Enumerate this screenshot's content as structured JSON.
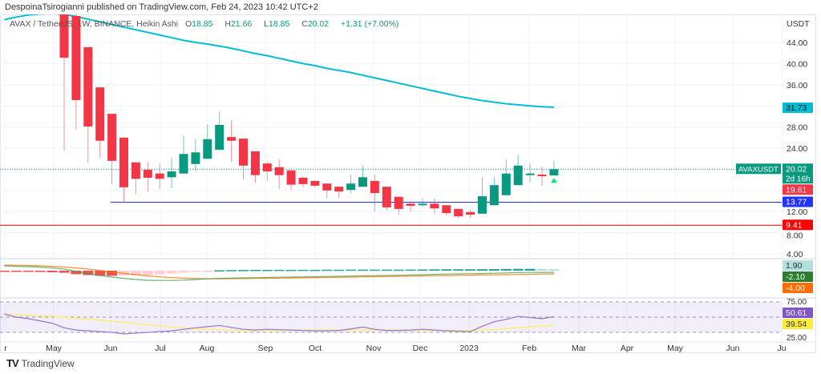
{
  "header": {
    "publisher": "DespoinaTsirogianni published on TradingView.com, Feb 24, 2023 10:42 UTC+2",
    "symbol": "AVAX / TetherUS, 1W, BINANCE, Heikin Ashi",
    "o_label": "O",
    "o": "18.85",
    "h_label": "H",
    "h": "21.66",
    "l_label": "L",
    "l": "18.85",
    "c_label": "C",
    "c": "20.02",
    "change": "+1.31 (+7.00%)"
  },
  "footer": {
    "logo_text": "TradingView"
  },
  "colors": {
    "up": "#089981",
    "down": "#f23645",
    "ma": "#00bcd4",
    "support_blue": "#2133f5",
    "support_red": "#ff0000",
    "rsi": "#9575cd",
    "rsi_ma": "#ffee58",
    "macd": "#43a047",
    "signal": "#ff6d00"
  },
  "chart_data": [
    {
      "type": "candlestick",
      "style": "Heikin Ashi",
      "title": "AVAX / TetherUS, 1W, BINANCE",
      "y_unit": "USDT",
      "ylim": [
        2.5,
        50
      ],
      "y_ticks": [
        "44.00",
        "40.00",
        "36.00",
        "28.00",
        "24.00",
        "12.00",
        "8.00",
        "4.00"
      ],
      "x_ticks": [
        "r",
        "May",
        "Jun",
        "Jul",
        "Aug",
        "Sep",
        "Oct",
        "Nov",
        "Dec",
        "2023",
        "Feb",
        "Mar",
        "Apr",
        "May",
        "Jun",
        "Ju"
      ],
      "grid": true,
      "candles": [
        null,
        null,
        null,
        null,
        null,
        {
          "o": 50,
          "h": 50,
          "l": 23.5,
          "c": 41.1
        },
        {
          "o": 49,
          "h": 52,
          "l": 27.5,
          "c": 33.1
        },
        {
          "o": 43.1,
          "h": 43.1,
          "l": 21.3,
          "c": 28.1
        },
        {
          "o": 35.5,
          "h": 35.5,
          "l": 22.2,
          "c": 25.4
        },
        {
          "o": 30.5,
          "h": 30.5,
          "l": 17.2,
          "c": 21.6
        },
        {
          "o": 26,
          "h": 26,
          "l": 13.7,
          "c": 16.6
        },
        {
          "o": 21.3,
          "h": 21.3,
          "l": 15.4,
          "c": 18.2
        },
        {
          "o": 19.9,
          "h": 21.4,
          "l": 15.8,
          "c": 18.4
        },
        {
          "o": 19.2,
          "h": 21.1,
          "l": 16.3,
          "c": 18.2
        },
        {
          "o": 18.5,
          "h": 22.2,
          "l": 16.4,
          "c": 19.6
        },
        {
          "o": 19.2,
          "h": 26.4,
          "l": 19.2,
          "c": 22.9
        },
        {
          "o": 21,
          "h": 25.8,
          "l": 19.6,
          "c": 23.2
        },
        {
          "o": 22,
          "h": 28.5,
          "l": 22,
          "c": 25.7
        },
        {
          "o": 23.7,
          "h": 31,
          "l": 23.7,
          "c": 28.4
        },
        {
          "o": 26.1,
          "h": 29.3,
          "l": 21.4,
          "c": 25.4
        },
        {
          "o": 25.8,
          "h": 25.8,
          "l": 18.1,
          "c": 20.7
        },
        {
          "o": 23.4,
          "h": 23.4,
          "l": 17.5,
          "c": 18.9
        },
        {
          "o": 21.1,
          "h": 21.4,
          "l": 17.8,
          "c": 19.6
        },
        {
          "o": 20.4,
          "h": 21.9,
          "l": 16.3,
          "c": 18.9
        },
        {
          "o": 19.8,
          "h": 19.8,
          "l": 16.1,
          "c": 17.1
        },
        {
          "o": 18.4,
          "h": 18.6,
          "l": 16.6,
          "c": 17.2
        },
        {
          "o": 17.8,
          "h": 17.8,
          "l": 16.6,
          "c": 16.9
        },
        {
          "o": 17.3,
          "h": 17.3,
          "l": 14.5,
          "c": 16
        },
        {
          "o": 16.7,
          "h": 16.7,
          "l": 14.6,
          "c": 15.8
        },
        {
          "o": 16.1,
          "h": 19,
          "l": 15.5,
          "c": 17.3
        },
        {
          "o": 16.7,
          "h": 20.7,
          "l": 16.7,
          "c": 18.5
        },
        {
          "o": 17.8,
          "h": 19,
          "l": 12,
          "c": 15.5
        },
        {
          "o": 16.7,
          "h": 16.7,
          "l": 12.2,
          "c": 12.8
        },
        {
          "o": 14.8,
          "h": 14.8,
          "l": 11.4,
          "c": 12.5
        },
        {
          "o": 13.5,
          "h": 14,
          "l": 12,
          "c": 13.1
        },
        {
          "o": 13.2,
          "h": 14.5,
          "l": 12.9,
          "c": 13.5
        },
        {
          "o": 13.5,
          "h": 14.5,
          "l": 11.6,
          "c": 12.6
        },
        {
          "o": 13.2,
          "h": 13.2,
          "l": 11.3,
          "c": 11.7
        },
        {
          "o": 12.5,
          "h": 12.5,
          "l": 10.7,
          "c": 11.1
        },
        {
          "o": 11.9,
          "h": 12.3,
          "l": 10.8,
          "c": 11.4
        },
        {
          "o": 11.6,
          "h": 18.5,
          "l": 11.6,
          "c": 14.9
        },
        {
          "o": 13.2,
          "h": 18.5,
          "l": 13.2,
          "c": 17
        },
        {
          "o": 15.1,
          "h": 21.9,
          "l": 15.1,
          "c": 19.2
        },
        {
          "o": 17,
          "h": 22.8,
          "l": 17,
          "c": 20.7
        },
        {
          "o": 18.9,
          "h": 21.1,
          "l": 17.5,
          "c": 19.2
        },
        {
          "o": 19,
          "h": 20.5,
          "l": 16.9,
          "c": 18.7
        },
        {
          "o": 18.85,
          "h": 21.66,
          "l": 18.85,
          "c": 20.02
        }
      ],
      "moving_average": [
        48.3,
        48.8,
        49.2,
        49.4,
        49.5,
        49.3,
        48.9,
        48.4,
        47.9,
        47.4,
        46.9,
        46.4,
        45.9,
        45.4,
        44.9,
        44.4,
        44.0,
        43.7,
        43.3,
        42.9,
        42.4,
        41.9,
        41.5,
        41.0,
        40.5,
        40.0,
        39.6,
        39.1,
        38.7,
        38.3,
        37.8,
        37.3,
        36.8,
        36.3,
        35.8,
        35.3,
        34.8,
        34.3,
        33.8,
        33.4,
        33.0,
        32.7,
        32.4,
        32.2,
        32.0,
        31.85,
        31.73
      ],
      "horizontal_lines": [
        {
          "value": 13.77,
          "label": "13.77",
          "color": "#2133f5"
        },
        {
          "value": 9.41,
          "label": "9.41",
          "color": "#ff0000"
        }
      ],
      "price_labels": {
        "ma": "31.73",
        "symbol_tag": "AVAXUSDT",
        "last": "20.02",
        "countdown": "2d 16h",
        "prev": "19.61",
        "last_value": 20.02,
        "prev_value": 19.61
      }
    },
    {
      "type": "macd",
      "macd": [
        6,
        5.5,
        5,
        4.5,
        3.5,
        2,
        -1,
        -3.5,
        -6,
        -8,
        -9.5,
        -11,
        -12,
        -12.2,
        -12.2,
        -11.8,
        -11,
        -10.2,
        -9.6,
        -9.2,
        -9,
        -8.7,
        -8.5,
        -8.2,
        -8,
        -7.8,
        -7.5,
        -7.2,
        -7,
        -6.7,
        -6.4,
        -6.2,
        -6,
        -5.7,
        -5.4,
        -5,
        -4.6,
        -4.3,
        -4,
        -3.8,
        -3.5,
        -3.2,
        -2.8,
        -2.4,
        -2.2,
        -2.1,
        -2.1
      ],
      "signal": [
        7,
        6.8,
        6.5,
        6.1,
        5.5,
        4.6,
        3.4,
        2,
        0.3,
        -1.6,
        -3.4,
        -5,
        -6.5,
        -7.7,
        -8.6,
        -9.3,
        -9.8,
        -10,
        -10.1,
        -10,
        -9.9,
        -9.7,
        -9.5,
        -9.3,
        -9.1,
        -8.9,
        -8.6,
        -8.4,
        -8.2,
        -8,
        -7.7,
        -7.5,
        -7.3,
        -7,
        -6.8,
        -6.5,
        -6.3,
        -6.1,
        -5.8,
        -5.6,
        -5.4,
        -5.2,
        -5,
        -4.7,
        -4.5,
        -4.2,
        -4.0
      ],
      "histogram": [
        -1,
        -1.3,
        -1.5,
        -1.6,
        -2,
        -2.6,
        -4.4,
        -5.5,
        -6.3,
        -6.4,
        -6.1,
        -6,
        -5.5,
        -4.5,
        -3.6,
        -2.5,
        -1.2,
        -0.2,
        0.5,
        0.8,
        0.9,
        1.0,
        1.0,
        1.1,
        1.1,
        1.1,
        1.1,
        1.2,
        1.2,
        1.3,
        1.3,
        1.3,
        1.3,
        1.3,
        1.4,
        1.5,
        1.7,
        1.8,
        1.8,
        1.8,
        1.9,
        2.0,
        2.2,
        2.3,
        2.3,
        2.1,
        1.9
      ],
      "labels": {
        "histogram": "1.90",
        "macd": "-2.10",
        "signal": "-4.00"
      }
    },
    {
      "type": "rsi",
      "ylim": [
        25,
        75
      ],
      "band": [
        30,
        70
      ],
      "y_ticks": [
        "75.00",
        "25.00"
      ],
      "rsi": [
        54,
        50,
        48,
        45,
        42,
        36,
        33,
        32,
        31,
        30,
        28,
        29,
        30,
        31,
        32,
        34,
        36,
        37.5,
        39,
        36.5,
        34,
        33,
        34,
        33.5,
        33,
        32.5,
        32,
        32,
        32.5,
        34.5,
        37,
        34,
        32.5,
        32.5,
        33,
        34,
        33,
        32,
        31.5,
        31,
        38,
        44,
        47,
        51,
        49.5,
        48,
        50.61
      ],
      "rsi_ma": [
        54,
        53.2,
        52.5,
        51.7,
        51,
        49.8,
        48.5,
        47.2,
        46,
        44.5,
        43,
        41.5,
        40,
        38.5,
        37,
        35.7,
        34.5,
        34,
        33.5,
        33,
        32.5,
        32.6,
        32.7,
        32.8,
        32.9,
        33,
        33,
        33,
        33,
        33,
        33,
        33,
        33,
        33,
        32.9,
        32.8,
        32.7,
        32.6,
        32.5,
        32.5,
        33,
        33.5,
        34.7,
        36,
        37.2,
        38.4,
        39.54
      ],
      "labels": {
        "rsi": "50.61",
        "rsi_ma": "39.54"
      }
    }
  ]
}
